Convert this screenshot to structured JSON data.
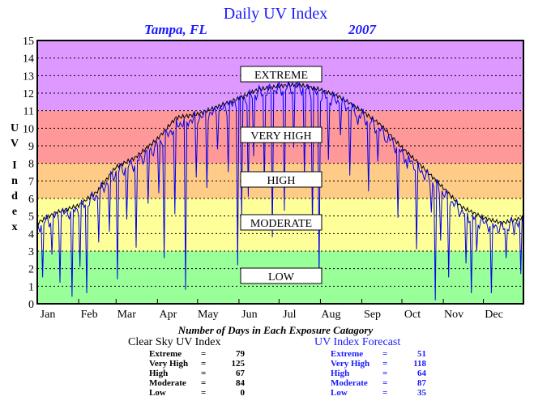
{
  "chart_data": {
    "type": "line",
    "title": "Daily UV Index",
    "subtitle_location": "Tampa, FL",
    "subtitle_year": "2007",
    "ylabel": "UV Index",
    "ylim": [
      0,
      15
    ],
    "yticks": [
      "0",
      "1",
      "2",
      "3",
      "4",
      "5",
      "6",
      "7",
      "8",
      "9",
      "10",
      "11",
      "12",
      "13",
      "14",
      "15"
    ],
    "xlim": [
      1,
      365
    ],
    "months": [
      "Jan",
      "Feb",
      "Mar",
      "Apr",
      "May",
      "Jun",
      "Jul",
      "Aug",
      "Sep",
      "Oct",
      "Nov",
      "Dec"
    ],
    "grid": true,
    "bands": [
      {
        "label": "LOW",
        "from": 0,
        "to": 3,
        "color": "#99ff99"
      },
      {
        "label": "MODERATE",
        "from": 3,
        "to": 6,
        "color": "#ffff99"
      },
      {
        "label": "HIGH",
        "from": 6,
        "to": 8,
        "color": "#ffcc88"
      },
      {
        "label": "VERY HIGH",
        "from": 8,
        "to": 11,
        "color": "#ff9999"
      },
      {
        "label": "EXTREME",
        "from": 11,
        "to": 15,
        "color": "#dd99ff"
      }
    ],
    "series": [
      {
        "name": "Clear Sky UV Index",
        "color": "#000000",
        "x": [
          1,
          15,
          32,
          46,
          60,
          74,
          91,
          105,
          121,
          135,
          152,
          166,
          182,
          196,
          213,
          227,
          244,
          258,
          274,
          288,
          305,
          319,
          335,
          349,
          365
        ],
        "y": [
          4.6,
          5.2,
          5.6,
          6.4,
          7.8,
          8.3,
          9.4,
          10.6,
          10.8,
          11.2,
          11.7,
          12.2,
          12.4,
          12.5,
          12.2,
          11.8,
          11.0,
          10.2,
          8.9,
          7.9,
          6.6,
          5.5,
          4.9,
          4.6,
          4.9
        ]
      },
      {
        "name": "UV Index Forecast",
        "color": "#0000ee",
        "x": [
          1,
          15,
          32,
          46,
          60,
          74,
          91,
          105,
          121,
          135,
          152,
          166,
          182,
          196,
          213,
          227,
          244,
          258,
          274,
          288,
          305,
          319,
          335,
          349,
          365
        ],
        "y": [
          4.4,
          5.0,
          5.4,
          6.2,
          7.5,
          8.0,
          9.0,
          10.2,
          10.6,
          10.9,
          11.5,
          12.0,
          12.2,
          12.4,
          11.9,
          11.5,
          10.7,
          9.9,
          8.6,
          7.6,
          6.3,
          5.2,
          4.6,
          4.3,
          4.8
        ],
        "dips": [
          [
            5,
            1.5
          ],
          [
            12,
            2.8
          ],
          [
            18,
            1.2
          ],
          [
            27,
            0.4
          ],
          [
            33,
            2.1
          ],
          [
            38,
            0.6
          ],
          [
            47,
            3.5
          ],
          [
            55,
            4.1
          ],
          [
            61,
            1.4
          ],
          [
            68,
            4.8
          ],
          [
            75,
            3.2
          ],
          [
            84,
            5.7
          ],
          [
            92,
            6.3
          ],
          [
            96,
            2.6
          ],
          [
            104,
            5.1
          ],
          [
            112,
            0.8
          ],
          [
            120,
            7.2
          ],
          [
            128,
            6.6
          ],
          [
            136,
            8.8
          ],
          [
            144,
            7.5
          ],
          [
            151,
            2.2
          ],
          [
            154,
            4.9
          ],
          [
            159,
            6.1
          ],
          [
            163,
            8.4
          ],
          [
            171,
            6.7
          ],
          [
            177,
            3.8
          ],
          [
            186,
            5.3
          ],
          [
            193,
            8.9
          ],
          [
            201,
            7.1
          ],
          [
            207,
            4.2
          ],
          [
            212,
            1.5
          ],
          [
            219,
            8.2
          ],
          [
            228,
            9.6
          ],
          [
            235,
            7.3
          ],
          [
            241,
            10.2
          ],
          [
            249,
            6.4
          ],
          [
            256,
            8.1
          ],
          [
            263,
            9.2
          ],
          [
            271,
            4.9
          ],
          [
            278,
            7.7
          ],
          [
            285,
            3.1
          ],
          [
            296,
            5.2
          ],
          [
            299,
            0.2
          ],
          [
            303,
            3.6
          ],
          [
            309,
            1.5
          ],
          [
            322,
            2.3
          ],
          [
            326,
            0.6
          ],
          [
            330,
            3.0
          ],
          [
            341,
            0.6
          ],
          [
            352,
            2.6
          ],
          [
            358,
            3.9
          ],
          [
            363,
            1.7
          ]
        ]
      }
    ]
  },
  "band_labels": {
    "extreme": "EXTREME",
    "very_high": "VERY HIGH",
    "high": "HIGH",
    "moderate": "MODERATE",
    "low": "LOW"
  },
  "footer": {
    "caption": "Number of Days in Each Exposure Catagory",
    "clear_sky": {
      "title": "Clear Sky UV Index",
      "rows": [
        {
          "name": "Extreme",
          "sep": "=",
          "value": "79"
        },
        {
          "name": "Very High",
          "sep": "=",
          "value": "125"
        },
        {
          "name": "High",
          "sep": "=",
          "value": "67"
        },
        {
          "name": "Moderate",
          "sep": "=",
          "value": "84"
        },
        {
          "name": "Low",
          "sep": "=",
          "value": "0"
        }
      ]
    },
    "forecast": {
      "title": "UV Index Forecast",
      "rows": [
        {
          "name": "Extreme",
          "sep": "=",
          "value": "51"
        },
        {
          "name": "Very High",
          "sep": "=",
          "value": "118"
        },
        {
          "name": "High",
          "sep": "=",
          "value": "64"
        },
        {
          "name": "Moderate",
          "sep": "=",
          "value": "87"
        },
        {
          "name": "Low",
          "sep": "=",
          "value": "35"
        }
      ]
    }
  }
}
